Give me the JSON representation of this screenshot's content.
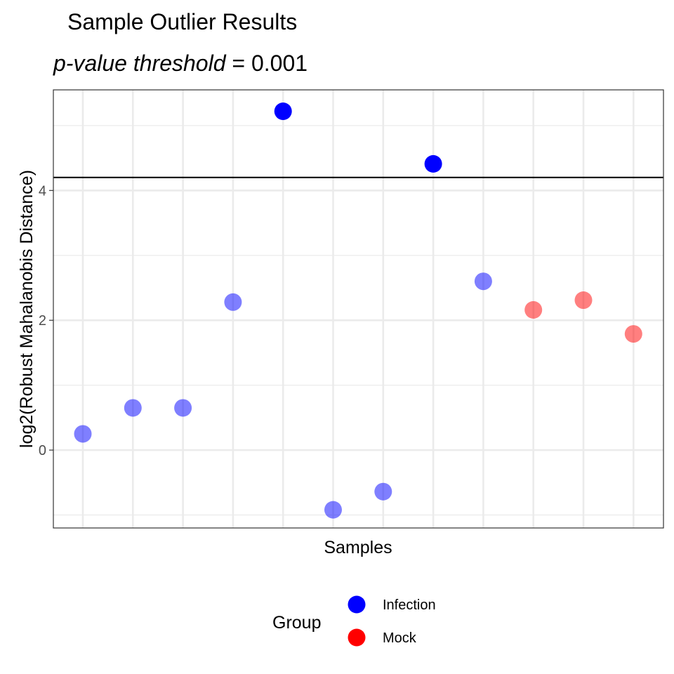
{
  "chart_data": {
    "type": "scatter",
    "title": "Sample Outlier Results",
    "subtitle_italic": "p-value threshold",
    "subtitle_rest": " = 0.001",
    "xlabel": "Samples",
    "ylabel": "log2(Robust Mahalanobis Distance)",
    "ylim": [
      -1.2,
      5.55
    ],
    "yticks": [
      0,
      2,
      4
    ],
    "grid": true,
    "threshold": 4.2,
    "legend": {
      "title": "Group",
      "placement": "bottom",
      "entries": [
        {
          "label": "Infection",
          "color": "#0000ff"
        },
        {
          "label": "Mock",
          "color": "#ff0000"
        }
      ]
    },
    "points": [
      {
        "x": 1,
        "y": 0.25,
        "group": "Infection",
        "outlier": false
      },
      {
        "x": 2,
        "y": 0.65,
        "group": "Infection",
        "outlier": false
      },
      {
        "x": 3,
        "y": 0.65,
        "group": "Infection",
        "outlier": false
      },
      {
        "x": 4,
        "y": 2.28,
        "group": "Infection",
        "outlier": false
      },
      {
        "x": 5,
        "y": 5.22,
        "group": "Infection",
        "outlier": true
      },
      {
        "x": 6,
        "y": -0.92,
        "group": "Infection",
        "outlier": false
      },
      {
        "x": 7,
        "y": -0.64,
        "group": "Infection",
        "outlier": false
      },
      {
        "x": 8,
        "y": 4.41,
        "group": "Infection",
        "outlier": true
      },
      {
        "x": 9,
        "y": 2.6,
        "group": "Infection",
        "outlier": false
      },
      {
        "x": 10,
        "y": 2.16,
        "group": "Mock",
        "outlier": false
      },
      {
        "x": 11,
        "y": 2.31,
        "group": "Mock",
        "outlier": false
      },
      {
        "x": 12,
        "y": 1.79,
        "group": "Mock",
        "outlier": false
      }
    ]
  }
}
